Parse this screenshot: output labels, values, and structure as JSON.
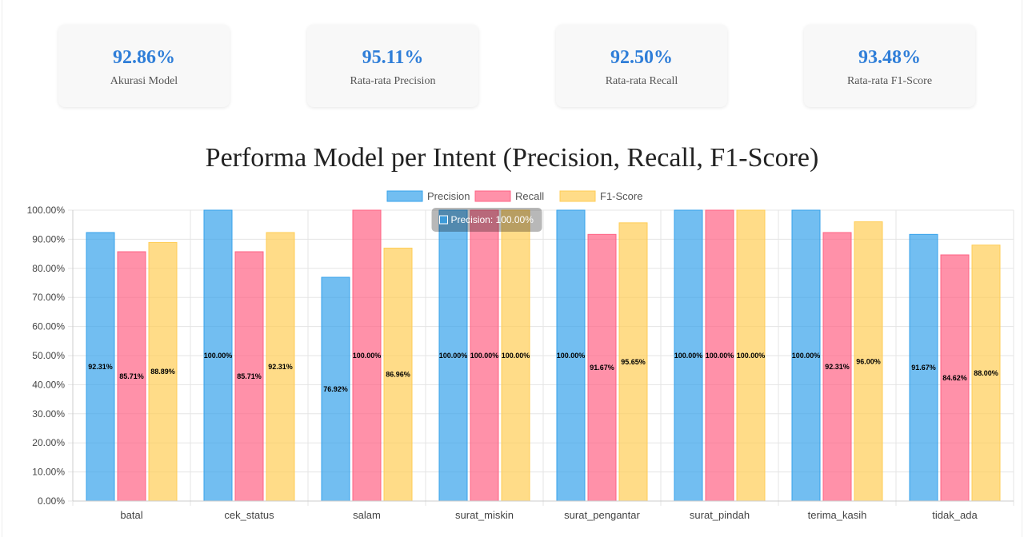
{
  "stats": [
    {
      "value": "92.86%",
      "label": "Akurasi Model"
    },
    {
      "value": "95.11%",
      "label": "Rata-rata Precision"
    },
    {
      "value": "92.50%",
      "label": "Rata-rata Recall"
    },
    {
      "value": "93.48%",
      "label": "Rata-rata F1-Score"
    }
  ],
  "chart_data": {
    "type": "bar",
    "title": "Performa Model per Intent (Precision, Recall, F1-Score)",
    "categories": [
      "batal",
      "cek_status",
      "salam",
      "surat_miskin",
      "surat_pengantar",
      "surat_pindah",
      "terima_kasih",
      "tidak_ada"
    ],
    "series": [
      {
        "name": "Precision",
        "color": "#36a2eb",
        "values": [
          92.31,
          100.0,
          76.92,
          100.0,
          100.0,
          100.0,
          100.0,
          91.67
        ]
      },
      {
        "name": "Recall",
        "color": "#ff6384",
        "values": [
          85.71,
          85.71,
          100.0,
          100.0,
          91.67,
          100.0,
          92.31,
          84.62
        ]
      },
      {
        "name": "F1-Score",
        "color": "#ffcd56",
        "values": [
          88.89,
          92.31,
          86.96,
          100.0,
          95.65,
          100.0,
          96.0,
          88.0
        ]
      }
    ],
    "ylim": [
      0,
      100
    ],
    "yticks": [
      0,
      10,
      20,
      30,
      40,
      50,
      60,
      70,
      80,
      90,
      100
    ],
    "ytick_labels": [
      "0.00%",
      "10.00%",
      "20.00%",
      "30.00%",
      "40.00%",
      "50.00%",
      "60.00%",
      "70.00%",
      "80.00%",
      "90.00%",
      "100.00%"
    ],
    "grid": true,
    "legend_position": "top",
    "tooltip": {
      "text": "Precision: 100.00%",
      "category": "surat_miskin",
      "series": "Precision"
    }
  }
}
